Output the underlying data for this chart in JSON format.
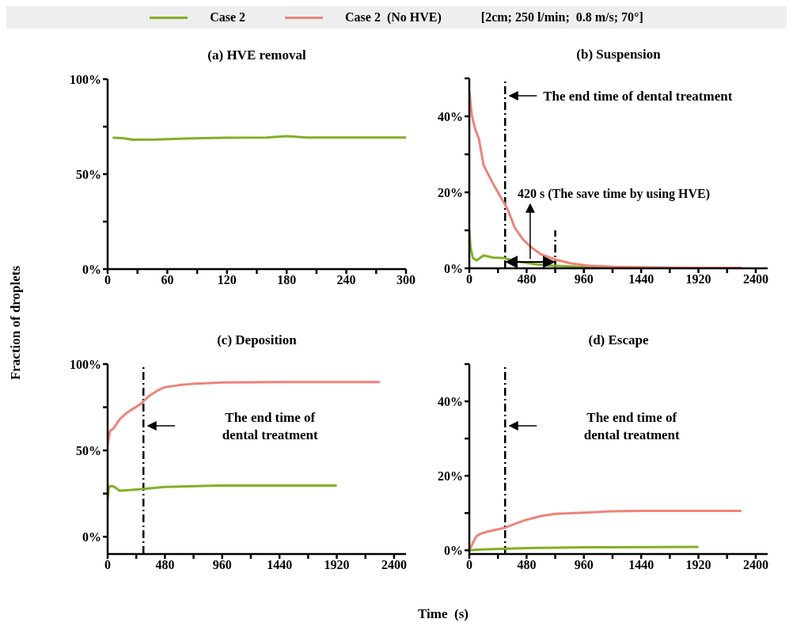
{
  "chart_data": [
    {
      "type": "line",
      "title": "(a) HVE removal",
      "ylabel": "Fraction of droplets",
      "xlim": [
        0,
        300
      ],
      "xticks": [
        0,
        {
          "value": 30,
          "label": null
        },
        60,
        {
          "value": 90,
          "label": null
        },
        120,
        {
          "value": 150,
          "label": null
        },
        180,
        {
          "value": 210,
          "label": null
        },
        240,
        {
          "value": 270,
          "label": null
        },
        300
      ],
      "ylim": [
        0,
        100
      ],
      "yticks": [
        {
          "value": 0,
          "label": "0%"
        },
        {
          "value": 25,
          "label": null
        },
        {
          "value": 50,
          "label": "50%"
        },
        {
          "value": 75,
          "label": null
        },
        {
          "value": 100,
          "label": "100%"
        }
      ],
      "series": [
        {
          "color": "#82b024",
          "x": [
            5,
            15,
            25,
            50,
            80,
            120,
            160,
            180,
            200,
            300
          ],
          "values": [
            69.2,
            69.0,
            68.1,
            68.2,
            68.8,
            69.2,
            69.3,
            70.0,
            69.3,
            69.3
          ]
        }
      ]
    },
    {
      "type": "line",
      "title": "(b) Suspension",
      "legend": "top",
      "legend_title": "[2cm; 250 l/min;  0.8 m/s; 70°]",
      "xlim": [
        0,
        2500
      ],
      "xticks": [
        0,
        {
          "value": 240,
          "label": null
        },
        480,
        {
          "value": 720,
          "label": null
        },
        960,
        {
          "value": 1200,
          "label": null
        },
        1440,
        {
          "value": 1680,
          "label": null
        },
        1920,
        {
          "value": 2160,
          "label": null
        },
        2400
      ],
      "ylim": [
        0,
        50
      ],
      "yticks": [
        {
          "value": 0,
          "label": "0%"
        },
        {
          "value": 10,
          "label": null
        },
        {
          "value": 20,
          "label": "20%"
        },
        {
          "value": 30,
          "label": null
        },
        {
          "value": 40,
          "label": "40%"
        },
        {
          "value": 50,
          "label": null
        }
      ],
      "ref_lines": [
        {
          "axis": "x",
          "value": 300,
          "label": "The end time of dental treatment",
          "line_style": "dashed"
        },
        {
          "axis": "x",
          "value": 720,
          "line_style": "dashed"
        }
      ],
      "annotations": [
        "420 s (The save time by using HVE)"
      ],
      "series": [
        {
          "name": "Case 2",
          "color": "#82b024",
          "x": [
            0,
            10,
            30,
            60,
            120,
            200,
            290,
            400,
            550,
            700,
            900,
            1200,
            1920
          ],
          "values": [
            10,
            5.5,
            2.7,
            2.1,
            3.4,
            2.8,
            2.7,
            1.8,
            1.1,
            0.7,
            0.4,
            0.2,
            0.1
          ]
        },
        {
          "name": "Case 2  (No HVE)",
          "color": "#ee8379",
          "x": [
            0,
            20,
            50,
            80,
            120,
            200,
            290,
            330,
            380,
            450,
            520,
            600,
            720,
            850,
            1000,
            1200,
            1500,
            1920,
            2280
          ],
          "values": [
            46.7,
            40.4,
            36.6,
            34.1,
            27.1,
            22.2,
            17.3,
            14.9,
            10.7,
            7.6,
            5.5,
            3.7,
            2.3,
            1.3,
            0.7,
            0.4,
            0.2,
            0.1,
            0.1
          ]
        }
      ]
    },
    {
      "type": "line",
      "title": "(c) Deposition",
      "xlabel": "Time  (s)",
      "xlim": [
        0,
        2500
      ],
      "xticks": [
        0,
        {
          "value": 240,
          "label": null
        },
        480,
        {
          "value": 720,
          "label": null
        },
        960,
        {
          "value": 1200,
          "label": null
        },
        1440,
        {
          "value": 1680,
          "label": null
        },
        1920,
        {
          "value": 2160,
          "label": null
        },
        2400
      ],
      "ylim": [
        -10,
        100
      ],
      "yticks": [
        {
          "value": 0,
          "label": "0%"
        },
        {
          "value": 25,
          "label": null
        },
        {
          "value": 50,
          "label": "50%"
        },
        {
          "value": 75,
          "label": null
        },
        {
          "value": 100,
          "label": "100%"
        }
      ],
      "ref_lines": [
        {
          "axis": "x",
          "value": 300,
          "label": "The end time of dental treatment",
          "line_style": "dashed"
        }
      ],
      "series": [
        {
          "color": "#82b024",
          "x": [
            0,
            10,
            40,
            70,
            100,
            200,
            300,
            480,
            960,
            1920
          ],
          "values": [
            21.3,
            29,
            29.4,
            28.2,
            26.7,
            27.1,
            27.7,
            28.8,
            29.7,
            29.6
          ]
        },
        {
          "color": "#ee8379",
          "x": [
            0,
            20,
            50,
            100,
            160,
            220,
            280,
            350,
            420,
            480,
            600,
            720,
            960,
            1440,
            2280
          ],
          "values": [
            53.7,
            61.3,
            62.8,
            68,
            71.8,
            74.4,
            77.1,
            81.7,
            84.8,
            86.6,
            87.8,
            88.6,
            89.3,
            89.6,
            89.6
          ]
        }
      ]
    },
    {
      "type": "line",
      "title": "(d) Escape",
      "xlim": [
        0,
        2500
      ],
      "xticks": [
        0,
        {
          "value": 240,
          "label": null
        },
        480,
        {
          "value": 720,
          "label": null
        },
        960,
        {
          "value": 1200,
          "label": null
        },
        1440,
        {
          "value": 1680,
          "label": null
        },
        1920,
        {
          "value": 2160,
          "label": null
        },
        2400
      ],
      "ylim": [
        -1,
        50
      ],
      "yticks": [
        {
          "value": 0,
          "label": "0%"
        },
        {
          "value": 10,
          "label": null
        },
        {
          "value": 20,
          "label": "20%"
        },
        {
          "value": 30,
          "label": null
        },
        {
          "value": 40,
          "label": "40%"
        },
        {
          "value": 50,
          "label": null
        }
      ],
      "ref_lines": [
        {
          "axis": "x",
          "value": 300,
          "label": "The end time of dental treatment",
          "line_style": "dashed"
        }
      ],
      "series": [
        {
          "color": "#82b024",
          "x": [
            0,
            100,
            480,
            960,
            1920
          ],
          "values": [
            0,
            0.2,
            0.6,
            0.8,
            0.9
          ]
        },
        {
          "color": "#ee8379",
          "x": [
            0,
            30,
            60,
            100,
            150,
            250,
            300,
            400,
            480,
            600,
            720,
            960,
            1200,
            1440,
            2280
          ],
          "values": [
            0,
            2,
            3.8,
            4.5,
            5,
            5.7,
            6.1,
            7.3,
            8.2,
            9.2,
            9.8,
            10.1,
            10.5,
            10.6,
            10.6
          ]
        }
      ]
    }
  ]
}
